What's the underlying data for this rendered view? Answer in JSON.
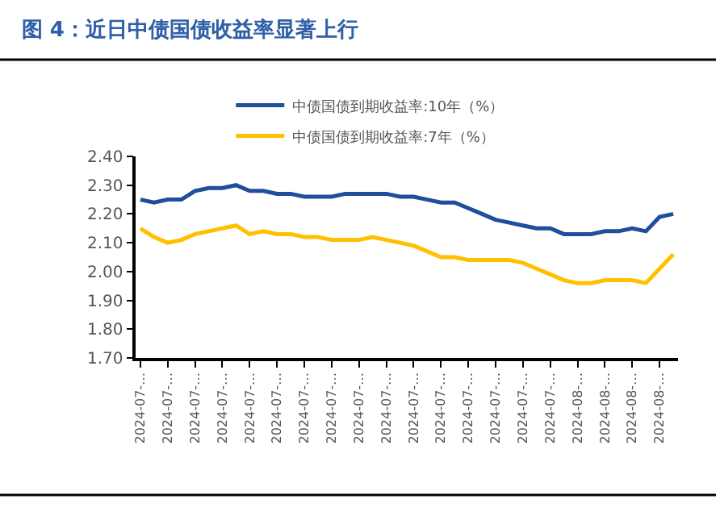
{
  "chart_data": {
    "type": "line",
    "title": "图 4：近日中债国债收益率显著上行",
    "categories": [
      "2024-07-…",
      null,
      "2024-07-…",
      null,
      "2024-07-…",
      null,
      "2024-07-…",
      null,
      "2024-07-…",
      null,
      "2024-07-…",
      null,
      "2024-07-…",
      null,
      "2024-07-…",
      null,
      "2024-07-…",
      null,
      "2024-07-…",
      null,
      "2024-07-…",
      null,
      "2024-07-…",
      null,
      "2024-07-…",
      null,
      "2024-07-…",
      null,
      "2024-07-…",
      null,
      "2024-07-…",
      null,
      "2024-08-…",
      null,
      "2024-08-…",
      null,
      "2024-08-…",
      null,
      "2024-08-…",
      null
    ],
    "series": [
      {
        "name": "中债国债到期收益率:10年（%）",
        "color": "#1f4e9c",
        "values": [
          2.25,
          2.24,
          2.25,
          2.25,
          2.28,
          2.29,
          2.29,
          2.3,
          2.28,
          2.28,
          2.27,
          2.27,
          2.26,
          2.26,
          2.26,
          2.27,
          2.27,
          2.27,
          2.27,
          2.26,
          2.26,
          2.25,
          2.24,
          2.24,
          2.22,
          2.2,
          2.18,
          2.17,
          2.16,
          2.15,
          2.15,
          2.13,
          2.13,
          2.13,
          2.14,
          2.14,
          2.15,
          2.14,
          2.19,
          2.2
        ]
      },
      {
        "name": "中债国债到期收益率:7年（%）",
        "color": "#ffc000",
        "values": [
          2.15,
          2.12,
          2.1,
          2.11,
          2.13,
          2.14,
          2.15,
          2.16,
          2.13,
          2.14,
          2.13,
          2.13,
          2.12,
          2.12,
          2.11,
          2.11,
          2.11,
          2.12,
          2.11,
          2.1,
          2.09,
          2.07,
          2.05,
          2.05,
          2.04,
          2.04,
          2.04,
          2.04,
          2.03,
          2.01,
          1.99,
          1.97,
          1.96,
          1.96,
          1.97,
          1.97,
          1.97,
          1.96,
          2.01,
          2.06
        ]
      }
    ],
    "ylim": [
      1.7,
      2.4
    ],
    "yticks": [
      {
        "value": 1.7,
        "label": "1.70"
      },
      {
        "value": 1.8,
        "label": "1.80"
      },
      {
        "value": 1.9,
        "label": "1.90"
      },
      {
        "value": 2.0,
        "label": "2.00"
      },
      {
        "value": 2.1,
        "label": "2.10"
      },
      {
        "value": 2.2,
        "label": "2.20"
      },
      {
        "value": 2.3,
        "label": "2.30"
      },
      {
        "value": 2.4,
        "label": "2.40"
      }
    ],
    "legend": "top",
    "marker": "none",
    "line_style": "solid"
  }
}
